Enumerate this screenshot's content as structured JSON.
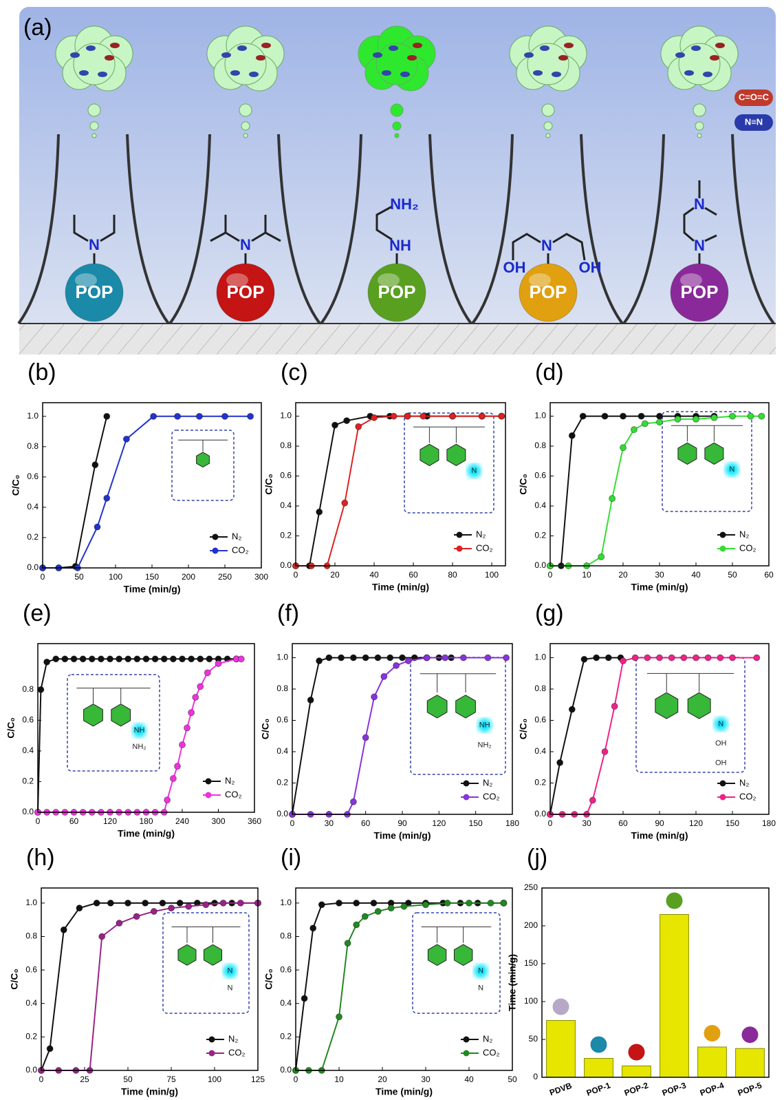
{
  "figure_a": {
    "label": "(a)",
    "particles": [
      {
        "label": "POP",
        "groups": [
          "N"
        ]
      },
      {
        "label": "POP",
        "groups": [
          "N"
        ]
      },
      {
        "label": "POP",
        "groups": [
          "NH",
          "NH₂"
        ]
      },
      {
        "label": "POP",
        "groups": [
          "N",
          "OH",
          "OH"
        ]
      },
      {
        "label": "POP",
        "groups": [
          "N",
          "N"
        ]
      }
    ],
    "legend": [
      "C=O=C",
      "N≡N"
    ]
  },
  "chart_data": [
    {
      "type": "line",
      "panel_label": "(b)",
      "x_label": "Time (min/g)",
      "y_label": "C/C₀",
      "xlim": [
        0,
        300
      ],
      "xticks": [
        0,
        50,
        100,
        150,
        200,
        250,
        300
      ],
      "ylim": [
        0,
        1.09
      ],
      "yticks": [
        {
          "value": 0,
          "label": "0.0"
        },
        0.2,
        0.4,
        0.6,
        0.8,
        {
          "value": 1,
          "label": "1.0"
        }
      ],
      "series": [
        {
          "name": "N₂",
          "color": "#111111",
          "x": [
            0,
            22,
            45,
            72,
            88
          ],
          "values": [
            0,
            0,
            0.01,
            0.68,
            1.0
          ]
        },
        {
          "name": "CO₂",
          "color": "#2233cc",
          "x": [
            0,
            22,
            48,
            75,
            88,
            115,
            152,
            185,
            215,
            250,
            285
          ],
          "values": [
            0,
            0,
            0,
            0.27,
            0.46,
            0.85,
            1.0,
            1.0,
            1.0,
            1.0,
            1.0
          ]
        }
      ]
    },
    {
      "type": "line",
      "panel_label": "(c)",
      "x_label": "Time (min/g)",
      "y_label": "C/C₀",
      "xlim": [
        0,
        107
      ],
      "xticks": [
        0,
        20,
        40,
        60,
        80,
        100
      ],
      "ylim": [
        0,
        1.09
      ],
      "yticks": [
        {
          "value": 0,
          "label": "0.0"
        },
        0.2,
        0.4,
        0.6,
        0.8,
        {
          "value": 1,
          "label": "1.0"
        }
      ],
      "inset_labels": [
        "N"
      ],
      "series": [
        {
          "name": "N₂",
          "color": "#111111",
          "x": [
            0,
            7,
            12,
            20,
            26,
            38,
            48,
            57,
            67,
            80,
            95,
            105
          ],
          "values": [
            0,
            0,
            0.36,
            0.94,
            0.97,
            1.0,
            1.0,
            1.0,
            1.0,
            1.0,
            1.0,
            1.0
          ]
        },
        {
          "name": "CO₂",
          "color": "#dd2222",
          "x": [
            0,
            8,
            16,
            25,
            32,
            40,
            50,
            57,
            65,
            80,
            95,
            105
          ],
          "values": [
            0,
            0,
            0,
            0.42,
            0.93,
            0.99,
            1.0,
            1.0,
            1.0,
            1.0,
            1.0,
            1.0
          ]
        }
      ]
    },
    {
      "type": "line",
      "panel_label": "(d)",
      "x_label": "Time (min/g)",
      "y_label": "C/C₀",
      "xlim": [
        0,
        60
      ],
      "xticks": [
        0,
        10,
        20,
        30,
        40,
        50,
        60
      ],
      "ylim": [
        0,
        1.09
      ],
      "yticks": [
        {
          "value": 0,
          "label": "0.0"
        },
        0.2,
        0.4,
        0.6,
        0.8,
        {
          "value": 1,
          "label": "1.0"
        }
      ],
      "inset_labels": [
        "N"
      ],
      "series": [
        {
          "name": "N₂",
          "color": "#111111",
          "x": [
            0,
            3,
            6,
            9,
            15,
            20,
            25,
            30,
            35,
            40,
            45
          ],
          "values": [
            0,
            0,
            0.87,
            1.0,
            1.0,
            1.0,
            1.0,
            1.0,
            1.0,
            1.0,
            1.0
          ]
        },
        {
          "name": "CO₂",
          "color": "#33dd33",
          "x": [
            0,
            5,
            10,
            14,
            17,
            20,
            23,
            26,
            30,
            35,
            40,
            45,
            50,
            55,
            58
          ],
          "values": [
            0,
            0,
            0,
            0.06,
            0.45,
            0.79,
            0.91,
            0.95,
            0.96,
            0.98,
            0.98,
            0.99,
            1.0,
            1.0,
            1.0
          ]
        }
      ]
    },
    {
      "type": "line",
      "panel_label": "(e)",
      "x_label": "Time (min/g)",
      "y_label": "C/C₀",
      "xlim": [
        0,
        360
      ],
      "xticks": [
        0,
        60,
        120,
        180,
        240,
        300,
        360
      ],
      "ylim": [
        0,
        1.1
      ],
      "yticks": [
        {
          "value": 0,
          "label": "0.0"
        },
        0.2,
        0.4,
        0.6,
        0.8
      ],
      "inset_labels": [
        "NH",
        "NH₂"
      ],
      "series": [
        {
          "name": "N₂",
          "color": "#111111",
          "x": [
            0,
            5,
            15,
            30,
            45,
            60,
            75,
            90,
            105,
            120,
            135,
            150,
            165,
            180,
            195,
            210,
            225,
            240,
            255,
            270,
            285,
            300,
            315,
            330
          ],
          "values": [
            0,
            0.8,
            0.98,
            1.0,
            1.0,
            1.0,
            1.0,
            1.0,
            1.0,
            1.0,
            1.0,
            1.0,
            1.0,
            1.0,
            1.0,
            1.0,
            1.0,
            1.0,
            1.0,
            1.0,
            1.0,
            1.0,
            1.0,
            1.0
          ]
        },
        {
          "name": "CO₂",
          "color": "#ee33dd",
          "x": [
            0,
            15,
            30,
            45,
            60,
            75,
            90,
            105,
            120,
            135,
            150,
            165,
            180,
            195,
            210,
            215,
            225,
            232,
            240,
            248,
            255,
            262,
            270,
            282,
            300,
            330,
            338
          ],
          "values": [
            0,
            0,
            0,
            0,
            0,
            0,
            0,
            0,
            0,
            0,
            0,
            0,
            0,
            0,
            0,
            0.08,
            0.22,
            0.3,
            0.44,
            0.55,
            0.65,
            0.75,
            0.82,
            0.91,
            0.97,
            1.0,
            1.0
          ]
        }
      ]
    },
    {
      "type": "line",
      "panel_label": "(f)",
      "x_label": "Time (min/g)",
      "y_label": "C/C₀",
      "xlim": [
        0,
        180
      ],
      "xticks": [
        0,
        30,
        60,
        90,
        120,
        150,
        180
      ],
      "ylim": [
        0,
        1.09
      ],
      "yticks": [
        {
          "value": 0,
          "label": "0.0"
        },
        0.2,
        0.4,
        0.6,
        0.8,
        {
          "value": 1,
          "label": "1.0"
        }
      ],
      "inset_labels": [
        "NH",
        "NH₂"
      ],
      "series": [
        {
          "name": "N₂",
          "color": "#111111",
          "x": [
            0,
            15,
            22,
            30,
            40,
            50,
            60,
            70,
            80,
            90,
            100,
            110,
            120,
            130
          ],
          "values": [
            0,
            0.73,
            0.98,
            1.0,
            1.0,
            1.0,
            1.0,
            1.0,
            1.0,
            1.0,
            1.0,
            1.0,
            1.0,
            1.0
          ]
        },
        {
          "name": "CO₂",
          "color": "#8833dd",
          "x": [
            0,
            15,
            30,
            45,
            50,
            60,
            67,
            75,
            85,
            95,
            110,
            125,
            140,
            160,
            175
          ],
          "values": [
            0,
            0,
            0,
            0,
            0.08,
            0.49,
            0.75,
            0.88,
            0.95,
            0.98,
            1.0,
            1.0,
            1.0,
            1.0,
            1.0
          ]
        }
      ]
    },
    {
      "type": "line",
      "panel_label": "(g)",
      "x_label": "Time (min/g)",
      "y_label": "C/C₀",
      "xlim": [
        0,
        180
      ],
      "xticks": [
        0,
        30,
        60,
        90,
        120,
        150,
        180
      ],
      "ylim": [
        0,
        1.09
      ],
      "yticks": [
        {
          "value": 0,
          "label": "0.0"
        },
        0.2,
        0.4,
        0.6,
        0.8,
        {
          "value": 1,
          "label": "1.0"
        }
      ],
      "inset_labels": [
        "N",
        "OH",
        "OH"
      ],
      "series": [
        {
          "name": "N₂",
          "color": "#111111",
          "x": [
            0,
            8,
            18,
            28,
            38,
            48,
            58
          ],
          "values": [
            0,
            0.33,
            0.67,
            0.99,
            1.0,
            1.0,
            1.0
          ]
        },
        {
          "name": "CO₂",
          "color": "#ee2288",
          "x": [
            0,
            10,
            20,
            30,
            35,
            45,
            53,
            60,
            70,
            80,
            90,
            100,
            110,
            120,
            130,
            140,
            150,
            170
          ],
          "values": [
            0,
            0,
            0,
            0,
            0.09,
            0.4,
            0.69,
            0.98,
            1.0,
            1.0,
            1.0,
            1.0,
            1.0,
            1.0,
            1.0,
            1.0,
            1.0,
            1.0
          ]
        }
      ]
    },
    {
      "type": "line",
      "panel_label": "(h)",
      "x_label": "Time (min/g)",
      "y_label": "C/C₀",
      "xlim": [
        0,
        125
      ],
      "xticks": [
        0,
        25,
        50,
        75,
        100,
        125
      ],
      "ylim": [
        0,
        1.09
      ],
      "yticks": [
        {
          "value": 0,
          "label": "0.0"
        },
        0.2,
        0.4,
        0.6,
        0.8,
        {
          "value": 1,
          "label": "1.0"
        }
      ],
      "inset_labels": [
        "N",
        "N"
      ],
      "series": [
        {
          "name": "N₂",
          "color": "#111111",
          "x": [
            0,
            5,
            13,
            22,
            32,
            40,
            50,
            60,
            70,
            80,
            90,
            100,
            110,
            125
          ],
          "values": [
            0,
            0.13,
            0.84,
            0.97,
            1.0,
            1.0,
            1.0,
            1.0,
            1.0,
            1.0,
            1.0,
            1.0,
            1.0,
            1.0
          ]
        },
        {
          "name": "CO₂",
          "color": "#992288",
          "x": [
            0,
            10,
            20,
            28,
            35,
            45,
            55,
            65,
            75,
            85,
            95,
            105,
            115,
            125
          ],
          "values": [
            0,
            0,
            0,
            0,
            0.8,
            0.88,
            0.92,
            0.95,
            0.97,
            0.98,
            0.99,
            1.0,
            1.0,
            1.0
          ]
        }
      ]
    },
    {
      "type": "line",
      "panel_label": "(i)",
      "x_label": "Time (min/g)",
      "y_label": "C/C₀",
      "xlim": [
        0,
        50
      ],
      "xticks": [
        0,
        10,
        20,
        30,
        40,
        50
      ],
      "ylim": [
        0,
        1.09
      ],
      "yticks": [
        {
          "value": 0,
          "label": "0.0"
        },
        0.2,
        0.4,
        0.6,
        0.8,
        {
          "value": 1,
          "label": "1.0"
        }
      ],
      "inset_labels": [
        "N",
        "N"
      ],
      "series": [
        {
          "name": "N₂",
          "color": "#111111",
          "x": [
            0,
            2,
            4,
            6,
            10,
            14,
            18,
            22,
            26,
            30,
            34,
            38,
            42,
            48
          ],
          "values": [
            0,
            0.43,
            0.85,
            0.99,
            1.0,
            1.0,
            1.0,
            1.0,
            1.0,
            1.0,
            1.0,
            1.0,
            1.0,
            1.0
          ]
        },
        {
          "name": "CO₂",
          "color": "#228822",
          "x": [
            0,
            3,
            6,
            10,
            12,
            14,
            16,
            19,
            22,
            25,
            30,
            35,
            40,
            45,
            48
          ],
          "values": [
            0,
            0,
            0,
            0.32,
            0.76,
            0.87,
            0.92,
            0.95,
            0.97,
            0.98,
            0.99,
            1.0,
            1.0,
            1.0,
            1.0
          ]
        }
      ]
    },
    {
      "type": "bar",
      "panel_label": "(j)",
      "y_label": "Time (min/g)",
      "categories": [
        "PDVB",
        "POP-1",
        "POP-2",
        "POP-3",
        "POP-4",
        "POP-5"
      ],
      "values": [
        75,
        25,
        15,
        215,
        40,
        38
      ],
      "color": "#e6e600",
      "ylim": [
        0,
        250
      ],
      "yticks": [
        0,
        50,
        100,
        150,
        200,
        250
      ]
    }
  ]
}
